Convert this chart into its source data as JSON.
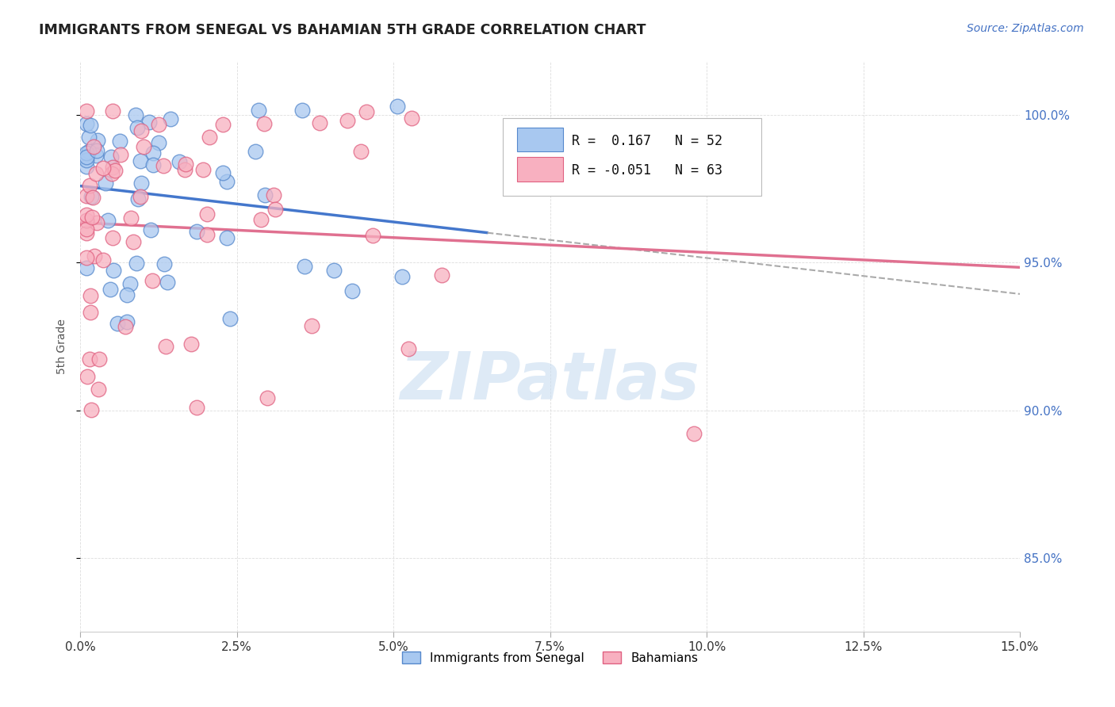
{
  "title": "IMMIGRANTS FROM SENEGAL VS BAHAMIAN 5TH GRADE CORRELATION CHART",
  "source": "Source: ZipAtlas.com",
  "ylabel": "5th Grade",
  "yticks": [
    "85.0%",
    "90.0%",
    "95.0%",
    "100.0%"
  ],
  "ytick_vals": [
    0.85,
    0.9,
    0.95,
    1.0
  ],
  "xlim": [
    0.0,
    0.15
  ],
  "ylim": [
    0.825,
    1.018
  ],
  "legend1_label": "Immigrants from Senegal",
  "legend2_label": "Bahamians",
  "r1": 0.167,
  "n1": 52,
  "r2": -0.051,
  "n2": 63,
  "blue_face": "#A8C8F0",
  "blue_edge": "#5588CC",
  "pink_face": "#F8B0C0",
  "pink_edge": "#E06080",
  "blue_line": "#4477CC",
  "pink_line": "#E07090",
  "watermark_color": "#C8DCF0",
  "watermark": "ZIPatlas"
}
